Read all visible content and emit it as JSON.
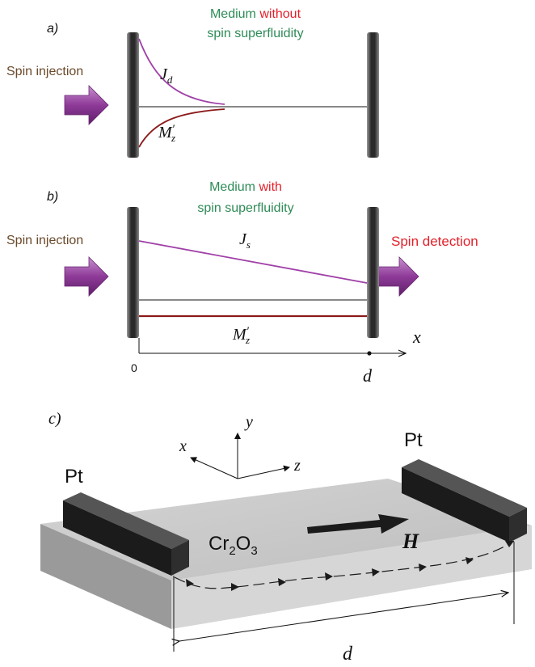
{
  "panel_a": {
    "label": "a)",
    "medium_title": {
      "part1": "Medium ",
      "part2": "without",
      "line2": "spin superfluidity"
    },
    "injection_label": "Spin injection",
    "current_label": {
      "base": "J",
      "sub": "d"
    },
    "magnetization_label": {
      "base": "M",
      "prime": "′",
      "sub": "z"
    }
  },
  "panel_b": {
    "label": "b)",
    "medium_title": {
      "part1": "Medium ",
      "part2": "with",
      "line2": "spin superfluidity"
    },
    "injection_label": "Spin injection",
    "detection_label": "Spin detection",
    "current_label": {
      "base": "J",
      "sub": "s"
    },
    "magnetization_label": {
      "base": "M",
      "prime": "′",
      "sub": "z"
    },
    "axis": {
      "x_label": "x",
      "origin_label": "0",
      "end_label": "d"
    }
  },
  "panel_c": {
    "label": "c)",
    "electrode_left": "Pt",
    "electrode_right": "Pt",
    "material": {
      "a": "Cr",
      "a_sub": "2",
      "b": "O",
      "b_sub": "3"
    },
    "field_label": "H",
    "axes": {
      "x": "x",
      "y": "y",
      "z": "z"
    },
    "distance_label": "d"
  },
  "colors": {
    "green": "#2e8b57",
    "red": "#e4202a",
    "brown": "#6b4a2b",
    "purple": "#a040a8",
    "dark_red": "#8b1a1a",
    "wall": "#3a3a3a"
  }
}
